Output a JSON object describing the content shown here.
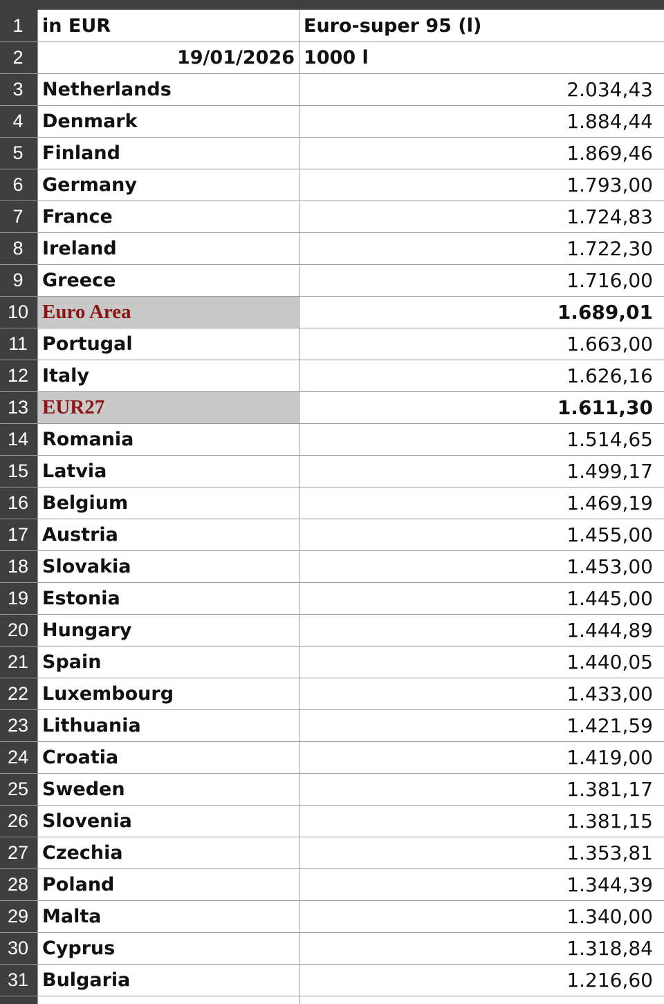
{
  "row_numbers": [
    1,
    2,
    3,
    4,
    5,
    6,
    7,
    8,
    9,
    10,
    11,
    12,
    13,
    14,
    15,
    16,
    17,
    18,
    19,
    20,
    21,
    22,
    23,
    24,
    25,
    26,
    27,
    28,
    29,
    30,
    31
  ],
  "header": {
    "a1": "in EUR",
    "b1": "Euro-super 95  (l)",
    "a2": "19/01/2026",
    "b2": "1000 l"
  },
  "rows": [
    {
      "label": "Netherlands",
      "value": "2.034,43"
    },
    {
      "label": "Denmark",
      "value": "1.884,44"
    },
    {
      "label": "Finland",
      "value": "1.869,46"
    },
    {
      "label": "Germany",
      "value": "1.793,00"
    },
    {
      "label": "France",
      "value": "1.724,83"
    },
    {
      "label": "Ireland",
      "value": "1.722,30"
    },
    {
      "label": "Greece",
      "value": "1.716,00"
    },
    {
      "label": "Euro Area",
      "value": "1.689,01",
      "highlight": true
    },
    {
      "label": "Portugal",
      "value": "1.663,00"
    },
    {
      "label": "Italy",
      "value": "1.626,16"
    },
    {
      "label": "EUR27",
      "value": "1.611,30",
      "highlight": true
    },
    {
      "label": "Romania",
      "value": "1.514,65"
    },
    {
      "label": "Latvia",
      "value": "1.499,17"
    },
    {
      "label": "Belgium",
      "value": "1.469,19"
    },
    {
      "label": "Austria",
      "value": "1.455,00"
    },
    {
      "label": "Slovakia",
      "value": "1.453,00"
    },
    {
      "label": "Estonia",
      "value": "1.445,00"
    },
    {
      "label": "Hungary",
      "value": "1.444,89"
    },
    {
      "label": "Spain",
      "value": "1.440,05"
    },
    {
      "label": "Luxembourg",
      "value": "1.433,00"
    },
    {
      "label": "Lithuania",
      "value": "1.421,59"
    },
    {
      "label": "Croatia",
      "value": "1.419,00"
    },
    {
      "label": "Sweden",
      "value": "1.381,17"
    },
    {
      "label": "Slovenia",
      "value": "1.381,15"
    },
    {
      "label": "Czechia",
      "value": "1.353,81"
    },
    {
      "label": "Poland",
      "value": "1.344,39"
    },
    {
      "label": "Malta",
      "value": "1.340,00"
    },
    {
      "label": "Cyprus",
      "value": "1.318,84"
    },
    {
      "label": "Bulgaria",
      "value": "1.216,60"
    }
  ]
}
